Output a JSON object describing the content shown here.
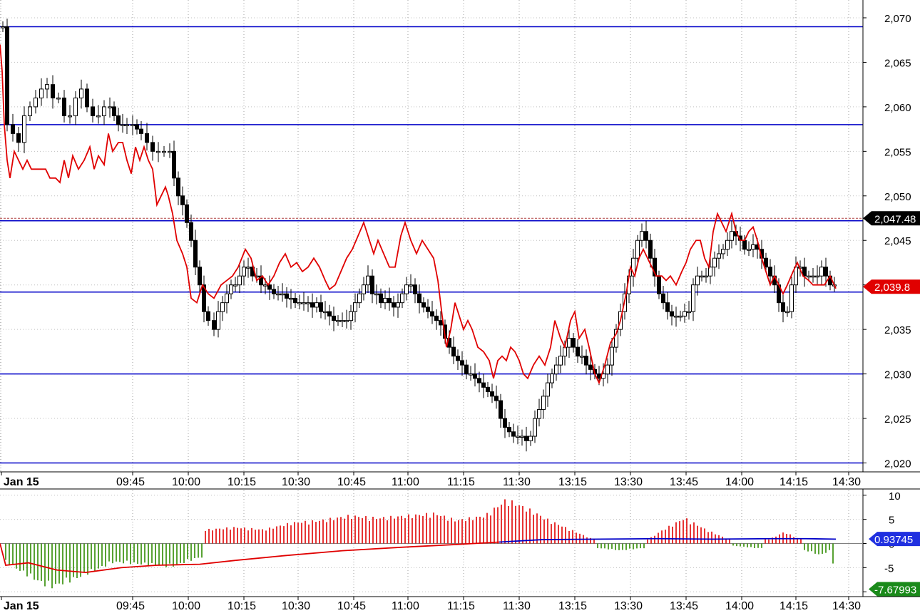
{
  "chart_data": {
    "type": "candlestick",
    "main_panel": {
      "x_ticks": [
        "Jan 15",
        "09:45",
        "10:00",
        "10:15",
        "10:30",
        "10:45",
        "11:00",
        "11:15",
        "11:30",
        "13:15",
        "13:30",
        "13:45",
        "14:00",
        "14:15",
        "14:30"
      ],
      "y_ticks": [
        "2,070",
        "2,065",
        "2,060",
        "2,055",
        "2,050",
        "2,045",
        "2,040",
        "2,035",
        "2,030",
        "2,025",
        "2,020"
      ],
      "ylim": [
        2019,
        2072
      ],
      "horizontal_levels": [
        2069,
        2058,
        2047.2,
        2039.2,
        2030,
        2020
      ],
      "last_price": {
        "value": 2047.48,
        "label": "2,047.48"
      },
      "red_line_last": {
        "value": 2039.8,
        "label": "2,039.8"
      },
      "red_line_series": [
        [
          0,
          2067
        ],
        [
          3,
          2064
        ],
        [
          6,
          2058
        ],
        [
          10,
          2054
        ],
        [
          14,
          2052
        ],
        [
          20,
          2055
        ],
        [
          26,
          2054
        ],
        [
          32,
          2053
        ],
        [
          38,
          2054
        ],
        [
          44,
          2053
        ],
        [
          50,
          2053
        ],
        [
          56,
          2053
        ],
        [
          64,
          2053
        ],
        [
          70,
          2052
        ],
        [
          78,
          2052
        ],
        [
          84,
          2051.5
        ],
        [
          90,
          2054
        ],
        [
          96,
          2052
        ],
        [
          102,
          2054.5
        ],
        [
          110,
          2053
        ],
        [
          118,
          2054
        ],
        [
          126,
          2055.5
        ],
        [
          132,
          2053
        ],
        [
          138,
          2054.5
        ],
        [
          146,
          2053.5
        ],
        [
          152,
          2057
        ],
        [
          158,
          2055
        ],
        [
          166,
          2056
        ],
        [
          172,
          2056
        ],
        [
          178,
          2054
        ],
        [
          184,
          2052.5
        ],
        [
          190,
          2055.5
        ],
        [
          196,
          2054
        ],
        [
          202,
          2055.5
        ],
        [
          208,
          2054
        ],
        [
          214,
          2053
        ],
        [
          220,
          2049
        ],
        [
          226,
          2050
        ],
        [
          232,
          2051
        ],
        [
          236,
          2050
        ],
        [
          242,
          2048
        ],
        [
          248,
          2045
        ],
        [
          256,
          2043.5
        ],
        [
          262,
          2042
        ],
        [
          268,
          2038.5
        ],
        [
          276,
          2038
        ],
        [
          284,
          2040
        ],
        [
          292,
          2039
        ],
        [
          300,
          2038.5
        ],
        [
          310,
          2040
        ],
        [
          318,
          2040.5
        ],
        [
          326,
          2041
        ],
        [
          334,
          2042
        ],
        [
          344,
          2044
        ],
        [
          352,
          2043
        ],
        [
          360,
          2040.5
        ],
        [
          368,
          2041
        ],
        [
          376,
          2040
        ],
        [
          384,
          2041
        ],
        [
          392,
          2042.5
        ],
        [
          400,
          2043.5
        ],
        [
          408,
          2042
        ],
        [
          416,
          2042.5
        ],
        [
          424,
          2041.5
        ],
        [
          432,
          2042
        ],
        [
          440,
          2043
        ],
        [
          448,
          2042
        ],
        [
          456,
          2040.5
        ],
        [
          462,
          2039.5
        ],
        [
          470,
          2040
        ],
        [
          478,
          2041.5
        ],
        [
          486,
          2043
        ],
        [
          494,
          2044
        ],
        [
          502,
          2045.5
        ],
        [
          510,
          2047
        ],
        [
          518,
          2045
        ],
        [
          524,
          2043.5
        ],
        [
          530,
          2045
        ],
        [
          538,
          2043.5
        ],
        [
          546,
          2042
        ],
        [
          554,
          2042
        ],
        [
          562,
          2045.5
        ],
        [
          568,
          2047
        ],
        [
          576,
          2045
        ],
        [
          584,
          2043.5
        ],
        [
          592,
          2045
        ],
        [
          600,
          2044
        ],
        [
          608,
          2043
        ],
        [
          614,
          2040.5
        ],
        [
          620,
          2036.5
        ],
        [
          626,
          2033
        ],
        [
          632,
          2035
        ],
        [
          638,
          2038
        ],
        [
          644,
          2036.5
        ],
        [
          650,
          2035
        ],
        [
          656,
          2036
        ],
        [
          662,
          2035
        ],
        [
          670,
          2033
        ],
        [
          678,
          2032.5
        ],
        [
          686,
          2031.5
        ],
        [
          692,
          2029.5
        ],
        [
          698,
          2031.5
        ],
        [
          704,
          2032
        ],
        [
          710,
          2031.5
        ],
        [
          716,
          2033
        ],
        [
          722,
          2032.5
        ],
        [
          728,
          2031.5
        ],
        [
          734,
          2030
        ],
        [
          740,
          2029.5
        ],
        [
          748,
          2031
        ],
        [
          756,
          2032
        ],
        [
          764,
          2031
        ],
        [
          772,
          2033
        ],
        [
          778,
          2036
        ],
        [
          786,
          2034
        ],
        [
          792,
          2033
        ],
        [
          800,
          2036
        ],
        [
          806,
          2037
        ],
        [
          812,
          2034
        ],
        [
          820,
          2035
        ],
        [
          826,
          2033
        ],
        [
          834,
          2030
        ],
        [
          840,
          2029
        ],
        [
          848,
          2031
        ],
        [
          856,
          2033.5
        ],
        [
          864,
          2034.5
        ],
        [
          870,
          2036
        ],
        [
          878,
          2039
        ],
        [
          884,
          2042
        ],
        [
          890,
          2041
        ],
        [
          896,
          2043
        ],
        [
          902,
          2044
        ],
        [
          908,
          2043
        ],
        [
          914,
          2042
        ],
        [
          920,
          2041
        ],
        [
          928,
          2041
        ],
        [
          934,
          2040.5
        ],
        [
          940,
          2041
        ],
        [
          948,
          2040
        ],
        [
          956,
          2041.5
        ],
        [
          962,
          2042.5
        ],
        [
          968,
          2044
        ],
        [
          976,
          2045
        ],
        [
          982,
          2045
        ],
        [
          988,
          2043
        ],
        [
          994,
          2042
        ],
        [
          1000,
          2046
        ],
        [
          1006,
          2048
        ],
        [
          1012,
          2047
        ],
        [
          1018,
          2046
        ],
        [
          1026,
          2048
        ],
        [
          1032,
          2046
        ],
        [
          1038,
          2045
        ],
        [
          1044,
          2045
        ],
        [
          1050,
          2046
        ],
        [
          1056,
          2046.5
        ],
        [
          1062,
          2045
        ],
        [
          1068,
          2043
        ],
        [
          1074,
          2041.5
        ],
        [
          1080,
          2040
        ],
        [
          1086,
          2041
        ],
        [
          1092,
          2040
        ],
        [
          1098,
          2039
        ],
        [
          1104,
          2040
        ],
        [
          1112,
          2041.5
        ],
        [
          1118,
          2042.5
        ],
        [
          1126,
          2041
        ],
        [
          1134,
          2040.5
        ],
        [
          1140,
          2040
        ],
        [
          1148,
          2040
        ],
        [
          1156,
          2040
        ],
        [
          1164,
          2041
        ],
        [
          1172,
          2039.6
        ]
      ]
    },
    "sub_panel": {
      "y_ticks": [
        "10",
        "5",
        "0",
        "-5",
        "-10"
      ],
      "ylim": [
        -11,
        11
      ],
      "hist_segments": [
        [
          8,
          -4
        ],
        [
          40,
          -7
        ],
        [
          70,
          -9.5
        ],
        [
          100,
          -8
        ],
        [
          130,
          -6
        ],
        [
          160,
          -4
        ],
        [
          200,
          -4.5
        ],
        [
          240,
          -5
        ],
        [
          280,
          -3
        ],
        [
          290,
          3
        ],
        [
          330,
          3.5
        ],
        [
          370,
          3
        ],
        [
          410,
          4.5
        ],
        [
          450,
          5
        ],
        [
          490,
          6
        ],
        [
          530,
          5.5
        ],
        [
          570,
          6
        ],
        [
          610,
          6.5
        ],
        [
          640,
          5
        ],
        [
          680,
          6
        ],
        [
          710,
          9.5
        ],
        [
          740,
          7.5
        ],
        [
          770,
          5
        ],
        [
          800,
          3
        ],
        [
          830,
          1
        ],
        [
          840,
          -1
        ],
        [
          870,
          -1.5
        ],
        [
          900,
          -1
        ],
        [
          910,
          1
        ],
        [
          930,
          3
        ],
        [
          960,
          5.5
        ],
        [
          990,
          3
        ],
        [
          1020,
          1
        ],
        [
          1030,
          -0.5
        ],
        [
          1060,
          -1
        ],
        [
          1080,
          1
        ],
        [
          1100,
          2.5
        ],
        [
          1120,
          1
        ],
        [
          1130,
          -1.5
        ],
        [
          1150,
          -2.5
        ],
        [
          1165,
          -1.5
        ],
        [
          1172,
          -7.7
        ]
      ],
      "signal_series": [
        [
          0,
          0
        ],
        [
          8,
          -4.5
        ],
        [
          40,
          -4
        ],
        [
          80,
          -5.5
        ],
        [
          120,
          -6
        ],
        [
          170,
          -5
        ],
        [
          220,
          -4.5
        ],
        [
          280,
          -4.3
        ],
        [
          330,
          -3.5
        ],
        [
          400,
          -2.5
        ],
        [
          480,
          -1.5
        ],
        [
          560,
          -0.8
        ],
        [
          640,
          -0.2
        ],
        [
          700,
          0.3
        ],
        [
          760,
          0.8
        ],
        [
          840,
          0.9
        ],
        [
          920,
          1
        ],
        [
          1000,
          0.9
        ],
        [
          1080,
          1
        ],
        [
          1130,
          1
        ],
        [
          1172,
          0.9
        ]
      ],
      "last_signal": {
        "value": 0.93745,
        "label": "0.93745"
      },
      "last_hist": {
        "value": -7.67993,
        "label": "-7.67993"
      }
    }
  }
}
